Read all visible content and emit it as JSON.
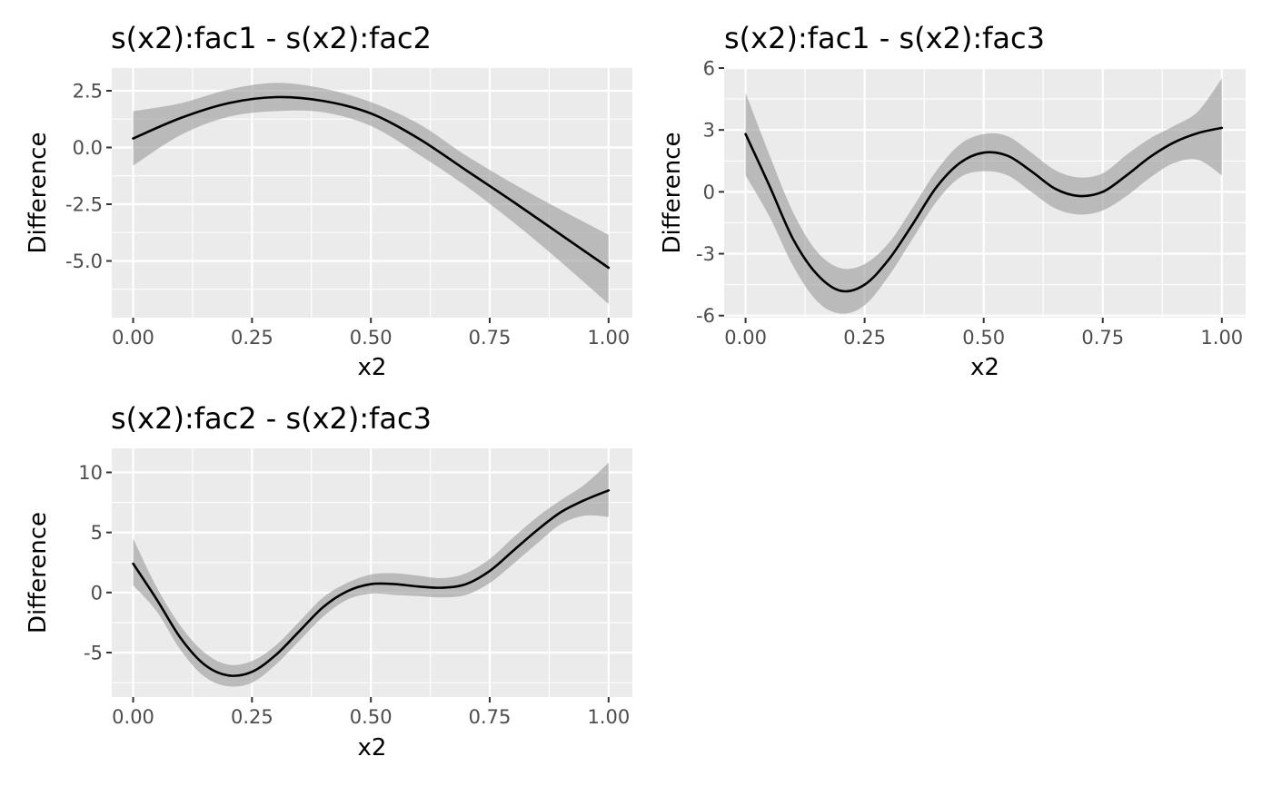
{
  "chart_data": [
    {
      "type": "line",
      "title": "s(x2):fac1 - s(x2):fac2",
      "xlabel": "x2",
      "ylabel": "Difference",
      "xlim": [
        -0.045,
        1.05
      ],
      "ylim": [
        -7.5,
        3.5
      ],
      "x_ticks": [
        0,
        0.25,
        0.5,
        0.75,
        1
      ],
      "x_tick_labels": [
        "0.00",
        "0.25",
        "0.50",
        "0.75",
        "1.00"
      ],
      "y_ticks": [
        -5,
        -2.5,
        0,
        2.5
      ],
      "y_tick_labels": [
        "-5.0",
        "-2.5",
        "0.0",
        "2.5"
      ],
      "grid": true,
      "series": [
        {
          "x": [
            0,
            0.1,
            0.2,
            0.3,
            0.4,
            0.5,
            0.6,
            0.7,
            0.8,
            0.9,
            1.0
          ],
          "values": [
            0.4,
            1.3,
            1.95,
            2.22,
            2.05,
            1.5,
            0.4,
            -1.0,
            -2.4,
            -3.85,
            -5.3
          ],
          "lower": [
            -0.8,
            0.55,
            1.35,
            1.6,
            1.55,
            0.95,
            -0.3,
            -1.7,
            -3.3,
            -5.05,
            -6.9
          ],
          "upper": [
            1.6,
            1.95,
            2.55,
            2.85,
            2.6,
            2.0,
            1.05,
            -0.35,
            -1.6,
            -2.75,
            -3.85
          ]
        }
      ]
    },
    {
      "type": "line",
      "title": "s(x2):fac1 - s(x2):fac3",
      "xlabel": "x2",
      "ylabel": "Difference",
      "xlim": [
        -0.045,
        1.05
      ],
      "ylim": [
        -6.1,
        6.0
      ],
      "x_ticks": [
        0,
        0.25,
        0.5,
        0.75,
        1
      ],
      "x_tick_labels": [
        "0.00",
        "0.25",
        "0.50",
        "0.75",
        "1.00"
      ],
      "y_ticks": [
        -6,
        -3,
        0,
        3,
        6
      ],
      "y_tick_labels": [
        "-6",
        "-3",
        "0",
        "3",
        "6"
      ],
      "grid": true,
      "series": [
        {
          "x": [
            0,
            0.05,
            0.1,
            0.15,
            0.2,
            0.25,
            0.3,
            0.35,
            0.4,
            0.45,
            0.5,
            0.55,
            0.6,
            0.65,
            0.7,
            0.75,
            0.8,
            0.85,
            0.9,
            0.95,
            1.0
          ],
          "values": [
            2.8,
            0.3,
            -2.3,
            -4.0,
            -4.8,
            -4.5,
            -3.3,
            -1.6,
            0.2,
            1.4,
            1.9,
            1.75,
            1.0,
            0.15,
            -0.2,
            0.0,
            0.8,
            1.7,
            2.4,
            2.85,
            3.1
          ],
          "lower": [
            0.8,
            -1.2,
            -3.6,
            -5.3,
            -5.9,
            -5.5,
            -4.1,
            -2.3,
            -0.5,
            0.7,
            1.0,
            0.8,
            0.0,
            -0.8,
            -1.1,
            -0.9,
            -0.2,
            0.7,
            1.4,
            1.55,
            0.8
          ],
          "upper": [
            4.8,
            1.8,
            -1.0,
            -2.9,
            -3.7,
            -3.5,
            -2.5,
            -0.8,
            1.0,
            2.3,
            2.8,
            2.7,
            1.9,
            1.05,
            0.7,
            0.9,
            1.8,
            2.6,
            3.2,
            3.9,
            5.5
          ]
        }
      ]
    },
    {
      "type": "line",
      "title": "s(x2):fac2 - s(x2):fac3",
      "xlabel": "x2",
      "ylabel": "Difference",
      "xlim": [
        -0.045,
        1.05
      ],
      "ylim": [
        -8.7,
        12.0
      ],
      "x_ticks": [
        0,
        0.25,
        0.5,
        0.75,
        1
      ],
      "x_tick_labels": [
        "0.00",
        "0.25",
        "0.50",
        "0.75",
        "1.00"
      ],
      "y_ticks": [
        -5,
        0,
        5,
        10
      ],
      "y_tick_labels": [
        "-5",
        "0",
        "5",
        "10"
      ],
      "grid": true,
      "series": [
        {
          "x": [
            0,
            0.05,
            0.1,
            0.15,
            0.2,
            0.25,
            0.3,
            0.35,
            0.4,
            0.45,
            0.5,
            0.55,
            0.6,
            0.65,
            0.7,
            0.75,
            0.8,
            0.85,
            0.9,
            0.95,
            1.0
          ],
          "values": [
            2.4,
            -0.6,
            -3.8,
            -6.0,
            -6.9,
            -6.6,
            -5.2,
            -3.2,
            -1.2,
            0.1,
            0.7,
            0.7,
            0.5,
            0.4,
            0.7,
            1.8,
            3.5,
            5.2,
            6.7,
            7.7,
            8.5
          ],
          "lower": [
            0.6,
            -1.6,
            -4.8,
            -7.0,
            -7.8,
            -7.5,
            -6.0,
            -4.0,
            -2.0,
            -0.6,
            -0.1,
            -0.2,
            -0.3,
            -0.4,
            -0.2,
            0.8,
            2.4,
            4.1,
            5.7,
            6.4,
            6.3
          ],
          "upper": [
            4.5,
            0.4,
            -2.8,
            -5.0,
            -6.0,
            -5.7,
            -4.4,
            -2.4,
            -0.4,
            0.8,
            1.5,
            1.6,
            1.4,
            1.2,
            1.6,
            2.8,
            4.6,
            6.3,
            7.7,
            9.0,
            10.8
          ]
        }
      ]
    }
  ]
}
